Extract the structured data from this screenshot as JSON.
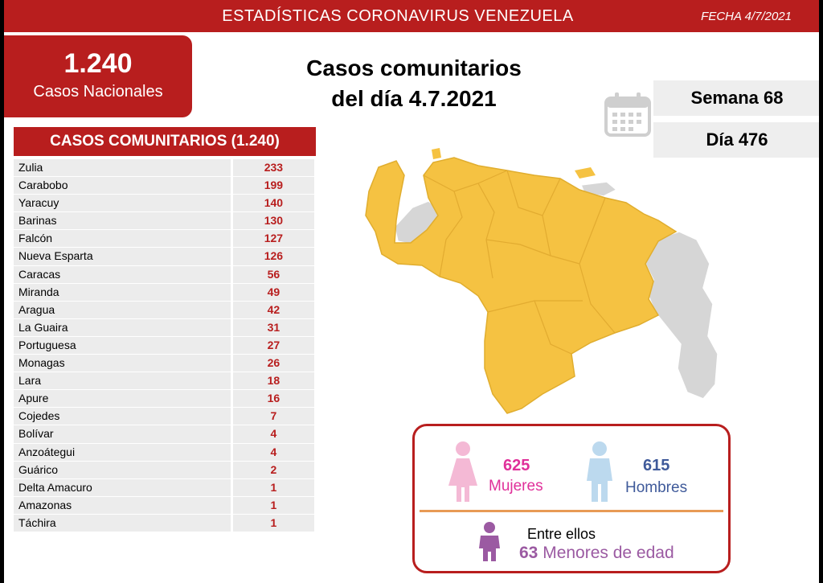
{
  "header": {
    "title": "ESTADÍSTICAS CORONAVIRUS VENEZUELA",
    "date": "FECHA 4/7/2021"
  },
  "national": {
    "value": "1.240",
    "label": "Casos Nacionales"
  },
  "headline": {
    "line1": "Casos comunitarios",
    "line2": "del día 4.7.2021"
  },
  "week": "Semana 68",
  "day": "Día 476",
  "list": {
    "title": "CASOS COMUNITARIOS (1.240)",
    "rows": [
      {
        "state": "Zulia",
        "value": "233"
      },
      {
        "state": "Carabobo",
        "value": "199"
      },
      {
        "state": "Yaracuy",
        "value": "140"
      },
      {
        "state": "Barinas",
        "value": "130"
      },
      {
        "state": "Falcón",
        "value": "127"
      },
      {
        "state": "Nueva Esparta",
        "value": "126"
      },
      {
        "state": "Caracas",
        "value": "56"
      },
      {
        "state": "Miranda",
        "value": "49"
      },
      {
        "state": "Aragua",
        "value": "42"
      },
      {
        "state": "La Guaira",
        "value": "31"
      },
      {
        "state": "Portuguesa",
        "value": "27"
      },
      {
        "state": "Monagas",
        "value": "26"
      },
      {
        "state": "Lara",
        "value": "18"
      },
      {
        "state": "Apure",
        "value": "16"
      },
      {
        "state": "Cojedes",
        "value": "7"
      },
      {
        "state": "Bolívar",
        "value": "4"
      },
      {
        "state": "Anzoátegui",
        "value": "4"
      },
      {
        "state": "Guárico",
        "value": "2"
      },
      {
        "state": "Delta Amacuro",
        "value": "1"
      },
      {
        "state": "Amazonas",
        "value": "1"
      },
      {
        "state": "Táchira",
        "value": "1"
      }
    ]
  },
  "gender": {
    "women_count": "625",
    "women_label": "Mujeres",
    "men_count": "615",
    "men_label": "Hombres",
    "minors_intro": "Entre ellos",
    "minors_count": "63",
    "minors_label": "Menores de edad"
  },
  "colors": {
    "brand_red": "#b81e1e",
    "map_yellow": "#f5c242",
    "map_gray": "#d6d6d6",
    "women_pink": "#e0309a",
    "men_blue": "#3f5a9a",
    "minors_purple": "#9b5aa2"
  },
  "icons": {
    "calendar": "calendar-icon",
    "woman": "woman-icon",
    "man": "man-icon",
    "child": "child-icon"
  }
}
